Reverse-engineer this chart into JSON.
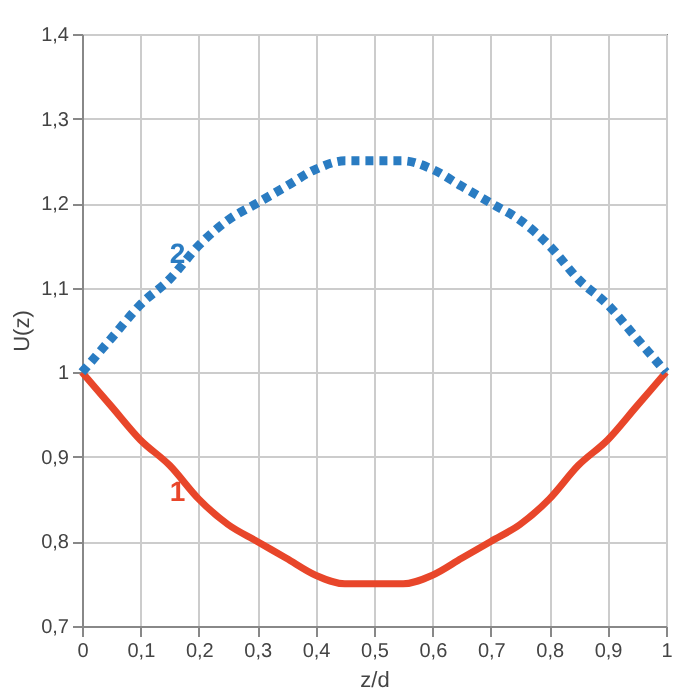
{
  "chart_data": {
    "type": "line",
    "xlabel": "z/d",
    "ylabel": "U(z)",
    "x": [
      0,
      0.05,
      0.1,
      0.15,
      0.2,
      0.25,
      0.3,
      0.35,
      0.4,
      0.45,
      0.5,
      0.55,
      0.6,
      0.65,
      0.7,
      0.75,
      0.8,
      0.85,
      0.9,
      0.95,
      1
    ],
    "series": [
      {
        "name": "1",
        "color": "#e8462a",
        "line_style": "solid",
        "values": [
          1,
          0.96,
          0.92,
          0.89,
          0.85,
          0.82,
          0.8,
          0.78,
          0.76,
          0.75,
          0.75,
          0.75,
          0.76,
          0.78,
          0.8,
          0.82,
          0.85,
          0.89,
          0.92,
          0.96,
          1
        ]
      },
      {
        "name": "2",
        "color": "#2a7cc2",
        "line_style": "dotted",
        "values": [
          1,
          1.04,
          1.08,
          1.11,
          1.15,
          1.18,
          1.2,
          1.22,
          1.24,
          1.25,
          1.25,
          1.25,
          1.24,
          1.22,
          1.2,
          1.18,
          1.15,
          1.11,
          1.08,
          1.04,
          1
        ]
      }
    ],
    "xlim": [
      0,
      1
    ],
    "ylim": [
      0.7,
      1.4
    ],
    "xticks": [
      0,
      {
        "value": 0.1,
        "label": "0,1"
      },
      {
        "value": 0.2,
        "label": "0,2"
      },
      {
        "value": 0.3,
        "label": "0,3"
      },
      {
        "value": 0.4,
        "label": "0,4"
      },
      {
        "value": 0.5,
        "label": "0,5"
      },
      {
        "value": 0.6,
        "label": "0,6"
      },
      {
        "value": 0.7,
        "label": "0,7"
      },
      {
        "value": 0.8,
        "label": "0,8"
      },
      {
        "value": 0.9,
        "label": "0,9"
      },
      1
    ],
    "yticks": [
      {
        "value": 0.7,
        "label": "0,7"
      },
      {
        "value": 0.8,
        "label": "0,8"
      },
      {
        "value": 0.9,
        "label": "0,9"
      },
      1,
      {
        "value": 1.1,
        "label": "1,1"
      },
      {
        "value": 1.2,
        "label": "1,2"
      },
      {
        "value": 1.3,
        "label": "1,3"
      },
      {
        "value": 1.4,
        "label": "1,4"
      }
    ],
    "grid": true,
    "marker": "none"
  }
}
